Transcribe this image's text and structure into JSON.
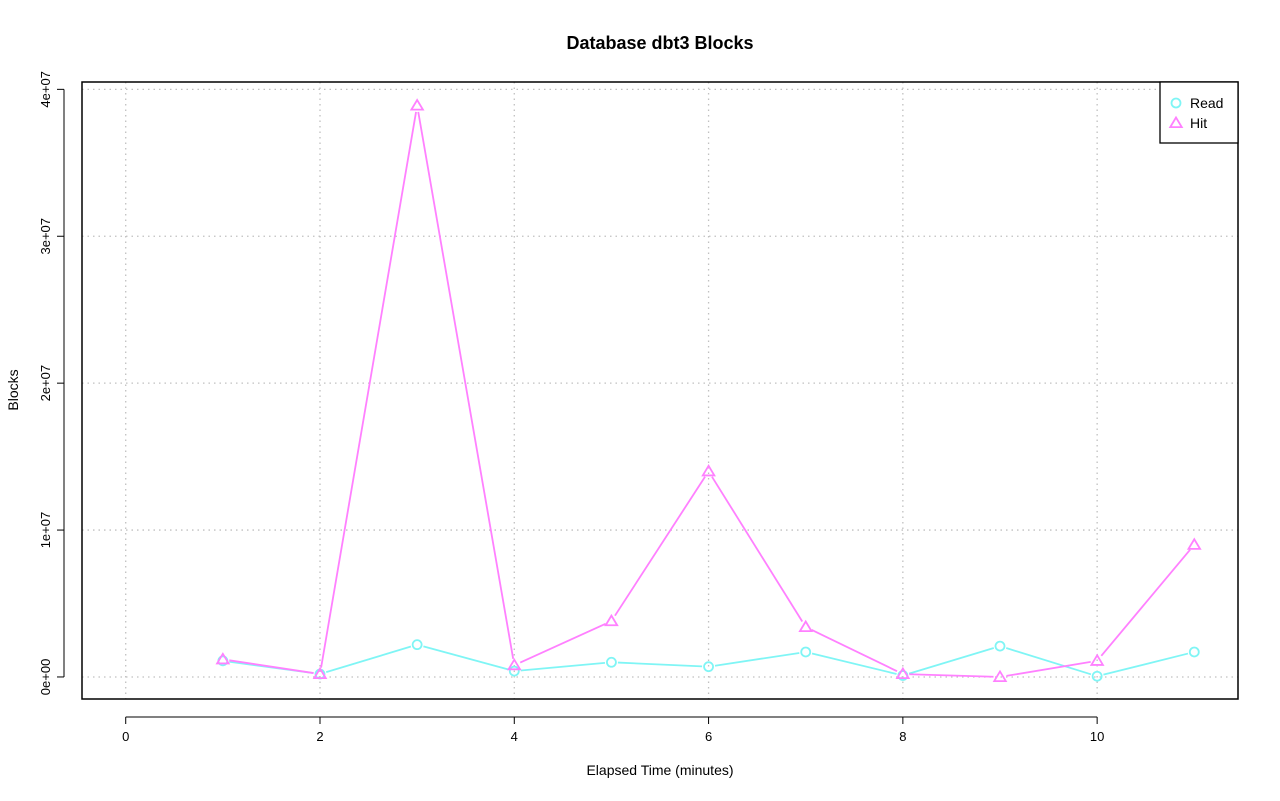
{
  "chart_data": {
    "type": "line",
    "title": "Database dbt3 Blocks",
    "xlabel": "Elapsed Time (minutes)",
    "ylabel": "Blocks",
    "xlim": [
      -0.45,
      11.45
    ],
    "ylim": [
      -1500000,
      40500000
    ],
    "x_ticks": [
      0,
      2,
      4,
      6,
      8,
      10
    ],
    "y_ticks": [
      0,
      10000000,
      20000000,
      30000000,
      40000000
    ],
    "y_tick_labels": [
      "0e+00",
      "1e+07",
      "2e+07",
      "3e+07",
      "4e+07"
    ],
    "grid": true,
    "legend_position": "top-right",
    "x": [
      1,
      2,
      3,
      4,
      5,
      6,
      7,
      8,
      9,
      10,
      11
    ],
    "series": [
      {
        "name": "Read",
        "color": "#7ff5f5",
        "marker": "circle",
        "values": [
          1100000,
          200000,
          2200000,
          400000,
          1000000,
          700000,
          1700000,
          100000,
          2100000,
          50000,
          1700000
        ]
      },
      {
        "name": "Hit",
        "color": "#ff80ff",
        "marker": "triangle",
        "values": [
          1200000,
          200000,
          38900000,
          800000,
          3800000,
          14000000,
          3400000,
          200000,
          0,
          1100000,
          9000000
        ]
      }
    ]
  }
}
